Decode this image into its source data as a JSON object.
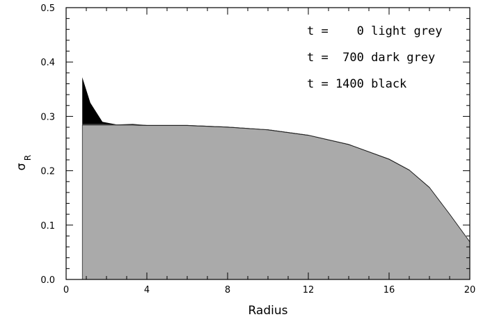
{
  "chart_data": {
    "type": "area",
    "xlabel": "Radius",
    "ylabel": "σ",
    "ylabel_subscript": "R",
    "xlim": [
      0,
      20
    ],
    "ylim": [
      0,
      0.5
    ],
    "x_ticks": [
      0,
      4,
      8,
      12,
      16,
      20
    ],
    "x_tick_labels": [
      "0",
      "4",
      "8",
      "12",
      "16",
      "20"
    ],
    "y_ticks": [
      0.0,
      0.1,
      0.2,
      0.3,
      0.4,
      0.5
    ],
    "y_tick_labels": [
      "0.0",
      "0.1",
      "0.2",
      "0.3",
      "0.4",
      "0.5"
    ],
    "grid": false,
    "legend_placement": "top-right",
    "legend": [
      "t =    0 light grey",
      "t =  700 dark grey",
      "t = 1400 black"
    ],
    "series": [
      {
        "color": "#000000",
        "x": [
          0.8,
          1.2,
          1.8,
          2.5,
          3.3,
          4.0,
          5.0,
          6.0,
          8.0,
          10.0,
          12.0,
          14.0,
          16.0,
          17.0,
          18.0,
          19.0,
          20.0
        ],
        "y": [
          0.372,
          0.325,
          0.29,
          0.285,
          0.286,
          0.284,
          0.284,
          0.284,
          0.281,
          0.276,
          0.266,
          0.249,
          0.222,
          0.202,
          0.17,
          0.121,
          0.07
        ]
      },
      {
        "color": "#555555",
        "x": [
          0.8,
          1.2,
          1.8,
          2.5,
          3.3,
          4.0,
          5.0,
          6.0,
          8.0,
          10.0,
          12.0,
          14.0,
          16.0,
          17.0,
          18.0,
          19.0,
          20.0
        ],
        "y": [
          0.286,
          0.286,
          0.286,
          0.285,
          0.285,
          0.284,
          0.284,
          0.284,
          0.281,
          0.276,
          0.266,
          0.249,
          0.222,
          0.202,
          0.17,
          0.121,
          0.07
        ]
      },
      {
        "color": "#aaaaaa",
        "x": [
          0.8,
          1.2,
          1.8,
          2.5,
          3.3,
          4.0,
          5.0,
          6.0,
          8.0,
          10.0,
          12.0,
          14.0,
          16.0,
          17.0,
          18.0,
          19.0,
          20.0
        ],
        "y": [
          0.284,
          0.284,
          0.284,
          0.284,
          0.284,
          0.283,
          0.283,
          0.283,
          0.28,
          0.275,
          0.265,
          0.248,
          0.221,
          0.201,
          0.169,
          0.12,
          0.069
        ]
      }
    ]
  }
}
